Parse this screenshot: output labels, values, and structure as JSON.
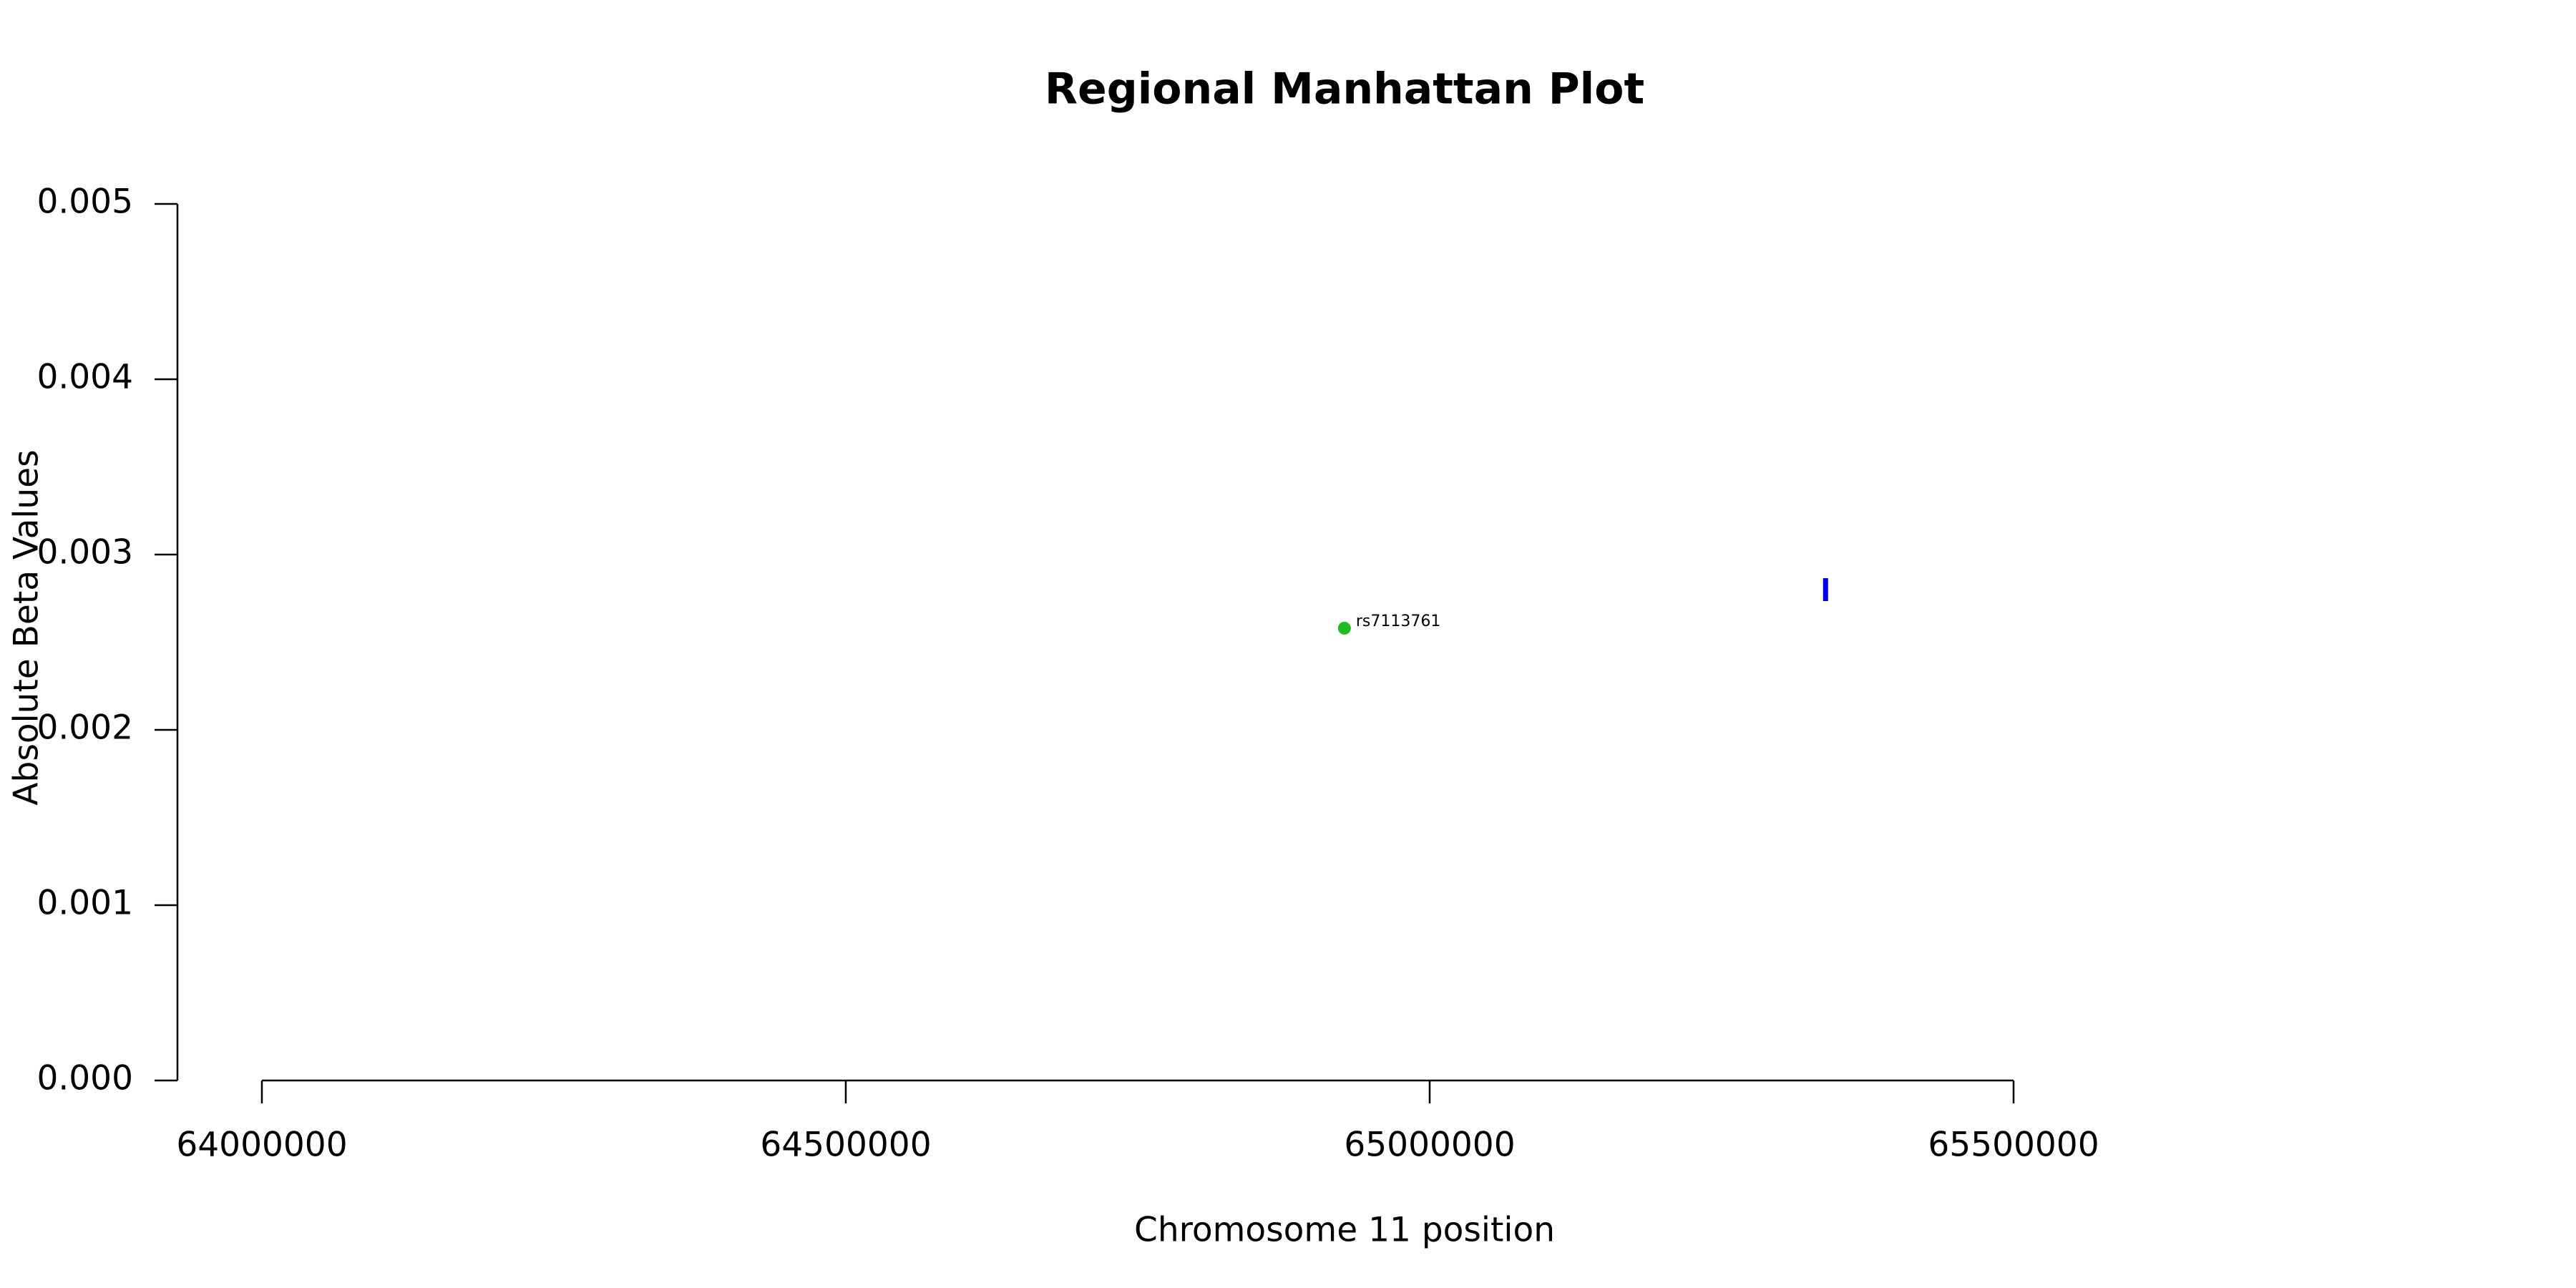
{
  "chart_data": {
    "type": "scatter",
    "title": "Regional Manhattan Plot",
    "x_label": "Chromosome 11 position",
    "y_label": "Absolute Beta Values",
    "series": [
      {
        "color": "#22bb22",
        "marker": "dot",
        "x": [
          64927000
        ],
        "values": [
          0.00258
        ],
        "point_labels": [
          "rs7113761"
        ]
      },
      {
        "color": "#0000ee",
        "marker": "|",
        "x": [
          65339000
        ],
        "values": [
          0.0028
        ]
      }
    ],
    "xlim": [
      64000000,
      65500000
    ],
    "xticks": [
      64000000,
      64500000,
      65000000,
      65500000
    ],
    "ylim": [
      0,
      0.005
    ],
    "yticks": [
      {
        "value": 0,
        "label": "0.000"
      },
      {
        "value": 0.001,
        "label": "0.001"
      },
      {
        "value": 0.002,
        "label": "0.002"
      },
      {
        "value": 0.003,
        "label": "0.003"
      },
      {
        "value": 0.004,
        "label": "0.004"
      },
      {
        "value": 0.005,
        "label": "0.005"
      }
    ],
    "grid": false
  }
}
